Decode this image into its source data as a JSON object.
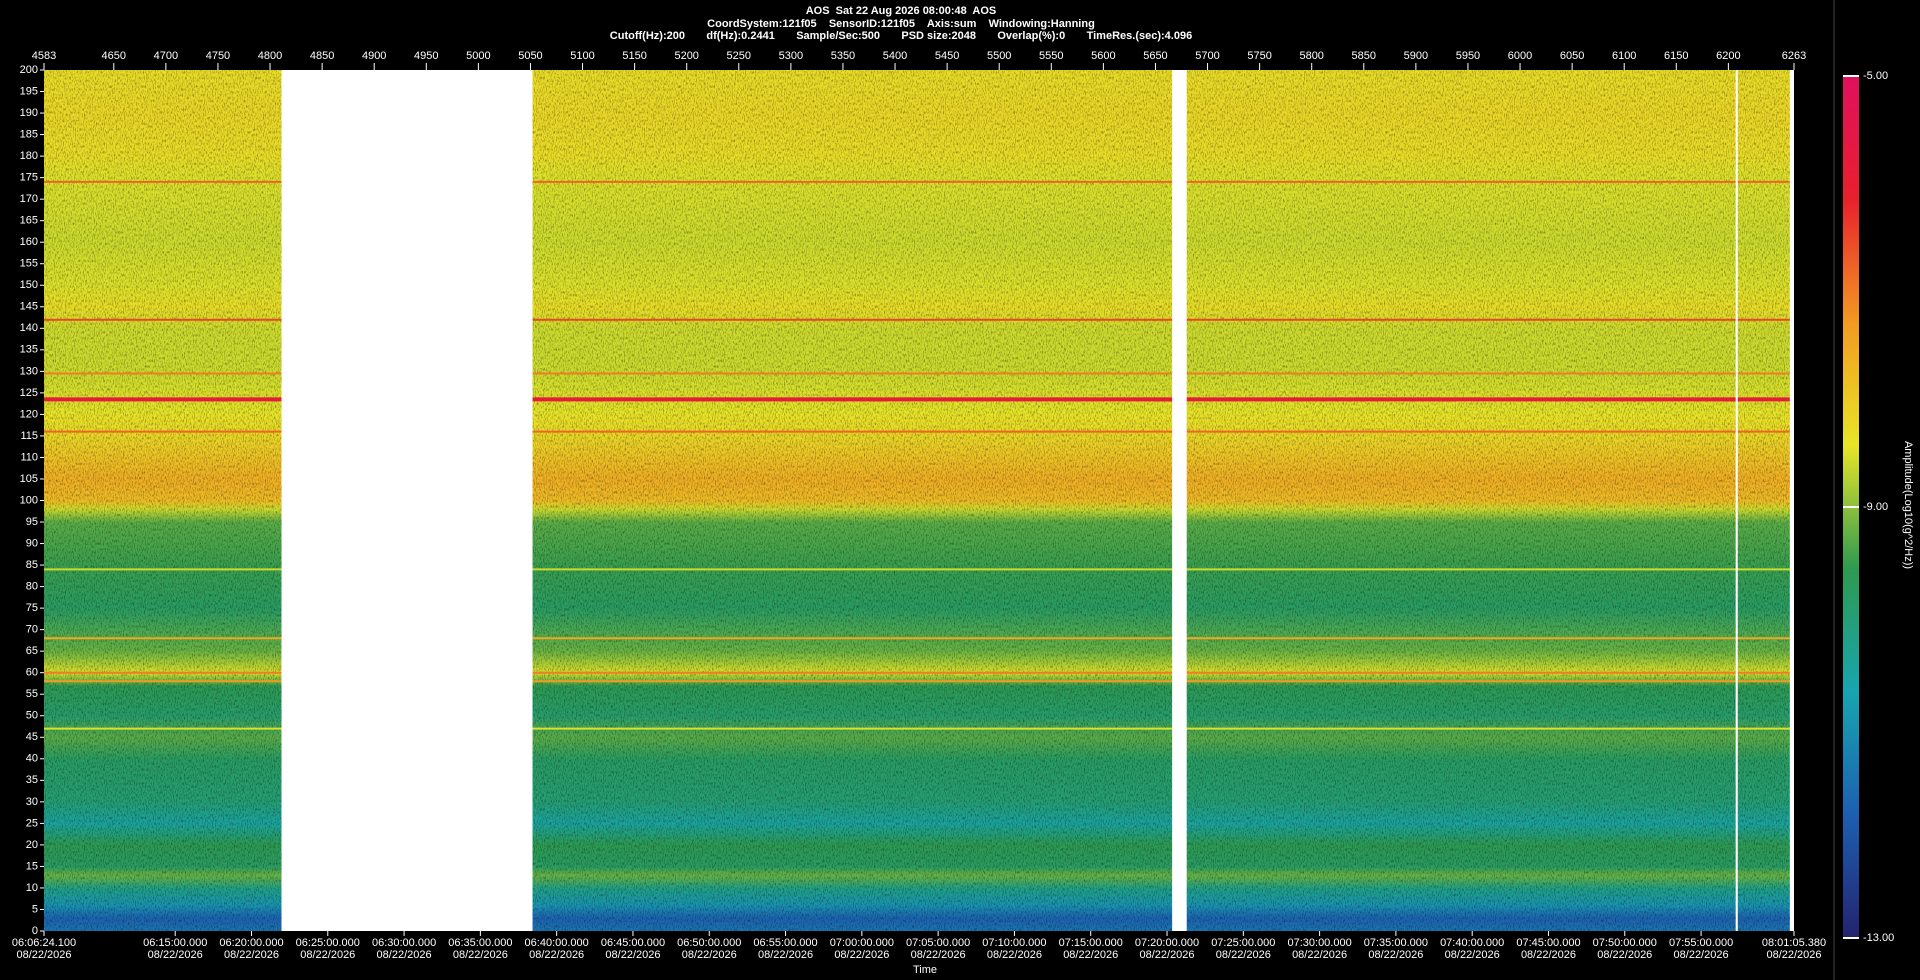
{
  "chart_data": {
    "type": "spectrogram",
    "title": "AOS  Sat 22 Aug 2026 08:00:48  AOS",
    "info": [
      "CoordSystem:121f05    SensorID:121f05    Axis:sum    Windowing:Hanning",
      "Cutoff(Hz):200       df(Hz):0.2441       Sample/Sec:500       PSD size:2048       Overlap(%):0       TimeRes.(sec):4.096"
    ],
    "xlabel": "Time",
    "colorbar_label": "Amplitude(Log10(g^2/Hz))",
    "xlim": [
      4583,
      6263
    ],
    "x2ticks": [
      4583,
      4650,
      4700,
      4750,
      4800,
      4850,
      4900,
      4950,
      5000,
      5050,
      5100,
      5150,
      5200,
      5250,
      5300,
      5350,
      5400,
      5450,
      5500,
      5550,
      5600,
      5650,
      5700,
      5750,
      5800,
      5850,
      5900,
      5950,
      6000,
      6050,
      6100,
      6150,
      6200,
      6263
    ],
    "xticks": [
      {
        "value": 4583,
        "label": "06:06:24.100",
        "date": "08/22/2026"
      },
      {
        "value": 4708.95,
        "label": "06:15:00.000",
        "date": "08/22/2026"
      },
      {
        "value": 4782.19,
        "label": "06:20:00.000",
        "date": "08/22/2026"
      },
      {
        "value": 4855.43,
        "label": "06:25:00.000",
        "date": "08/22/2026"
      },
      {
        "value": 4928.68,
        "label": "06:30:00.000",
        "date": "08/22/2026"
      },
      {
        "value": 5001.92,
        "label": "06:35:00.000",
        "date": "08/22/2026"
      },
      {
        "value": 5075.16,
        "label": "06:40:00.000",
        "date": "08/22/2026"
      },
      {
        "value": 5148.4,
        "label": "06:45:00.000",
        "date": "08/22/2026"
      },
      {
        "value": 5221.64,
        "label": "06:50:00.000",
        "date": "08/22/2026"
      },
      {
        "value": 5294.89,
        "label": "06:55:00.000",
        "date": "08/22/2026"
      },
      {
        "value": 5368.13,
        "label": "07:00:00.000",
        "date": "08/22/2026"
      },
      {
        "value": 5441.37,
        "label": "07:05:00.000",
        "date": "08/22/2026"
      },
      {
        "value": 5514.61,
        "label": "07:10:00.000",
        "date": "08/22/2026"
      },
      {
        "value": 5587.85,
        "label": "07:15:00.000",
        "date": "08/22/2026"
      },
      {
        "value": 5661.1,
        "label": "07:20:00.000",
        "date": "08/22/2026"
      },
      {
        "value": 5734.34,
        "label": "07:25:00.000",
        "date": "08/22/2026"
      },
      {
        "value": 5807.58,
        "label": "07:30:00.000",
        "date": "08/22/2026"
      },
      {
        "value": 5880.82,
        "label": "07:35:00.000",
        "date": "08/22/2026"
      },
      {
        "value": 5954.06,
        "label": "07:40:00.000",
        "date": "08/22/2026"
      },
      {
        "value": 6027.3,
        "label": "07:45:00.000",
        "date": "08/22/2026"
      },
      {
        "value": 6100.55,
        "label": "07:50:00.000",
        "date": "08/22/2026"
      },
      {
        "value": 6173.79,
        "label": "07:55:00.000",
        "date": "08/22/2026"
      },
      {
        "value": 6263,
        "label": "08:01:05.380",
        "date": "08/22/2026"
      }
    ],
    "ylim": [
      0,
      200
    ],
    "yticks": [
      0,
      5,
      10,
      15,
      20,
      25,
      30,
      35,
      40,
      45,
      50,
      55,
      60,
      65,
      70,
      75,
      80,
      85,
      90,
      95,
      100,
      105,
      110,
      115,
      120,
      125,
      130,
      135,
      140,
      145,
      150,
      155,
      160,
      165,
      170,
      175,
      180,
      185,
      190,
      195,
      200
    ],
    "clim": [
      -13,
      -5
    ],
    "cticks": [
      {
        "value": -13,
        "label": "-13.00"
      },
      {
        "value": -9,
        "label": "-9.00"
      },
      {
        "value": -5,
        "label": "-5.00"
      }
    ],
    "colormap": [
      "#23236e",
      "#1d5fb0",
      "#17a5b0",
      "#2e9a50",
      "#e8e628",
      "#f29a22",
      "#e8202c",
      "#e0105e"
    ],
    "spectrum": {
      "freqs": [
        0,
        3,
        6,
        10,
        13,
        15,
        20,
        25,
        30,
        40,
        45,
        50,
        57,
        60,
        65,
        75,
        85,
        95,
        98,
        100,
        105,
        110,
        115,
        120,
        130,
        140,
        145,
        150,
        160,
        175,
        180,
        190,
        200
      ],
      "amplitudes": [
        -11.5,
        -11.8,
        -11,
        -10.2,
        -9.2,
        -9.8,
        -9.6,
        -10.5,
        -10,
        -9.8,
        -9.3,
        -9.9,
        -9.6,
        -8.5,
        -9.2,
        -9.8,
        -9.5,
        -9.3,
        -8.6,
        -7.8,
        -7.6,
        -7.9,
        -8.2,
        -8.4,
        -8.6,
        -8.6,
        -8.3,
        -8.5,
        -8.6,
        -8.5,
        -8.3,
        -8.2,
        -8.3
      ]
    },
    "tones": {
      "freqs": [
        174,
        142,
        129.5,
        123.5,
        116,
        84,
        68,
        60,
        58,
        47
      ],
      "amplitudes": [
        -6.8,
        -6.5,
        -7,
        -5.8,
        -6.8,
        -8.6,
        -7.5,
        -7,
        -7.3,
        -8.5
      ]
    },
    "gaps": [
      [
        4811,
        5052
      ],
      [
        5666,
        5680
      ],
      [
        6259,
        6263
      ],
      [
        6207,
        6209
      ]
    ]
  }
}
